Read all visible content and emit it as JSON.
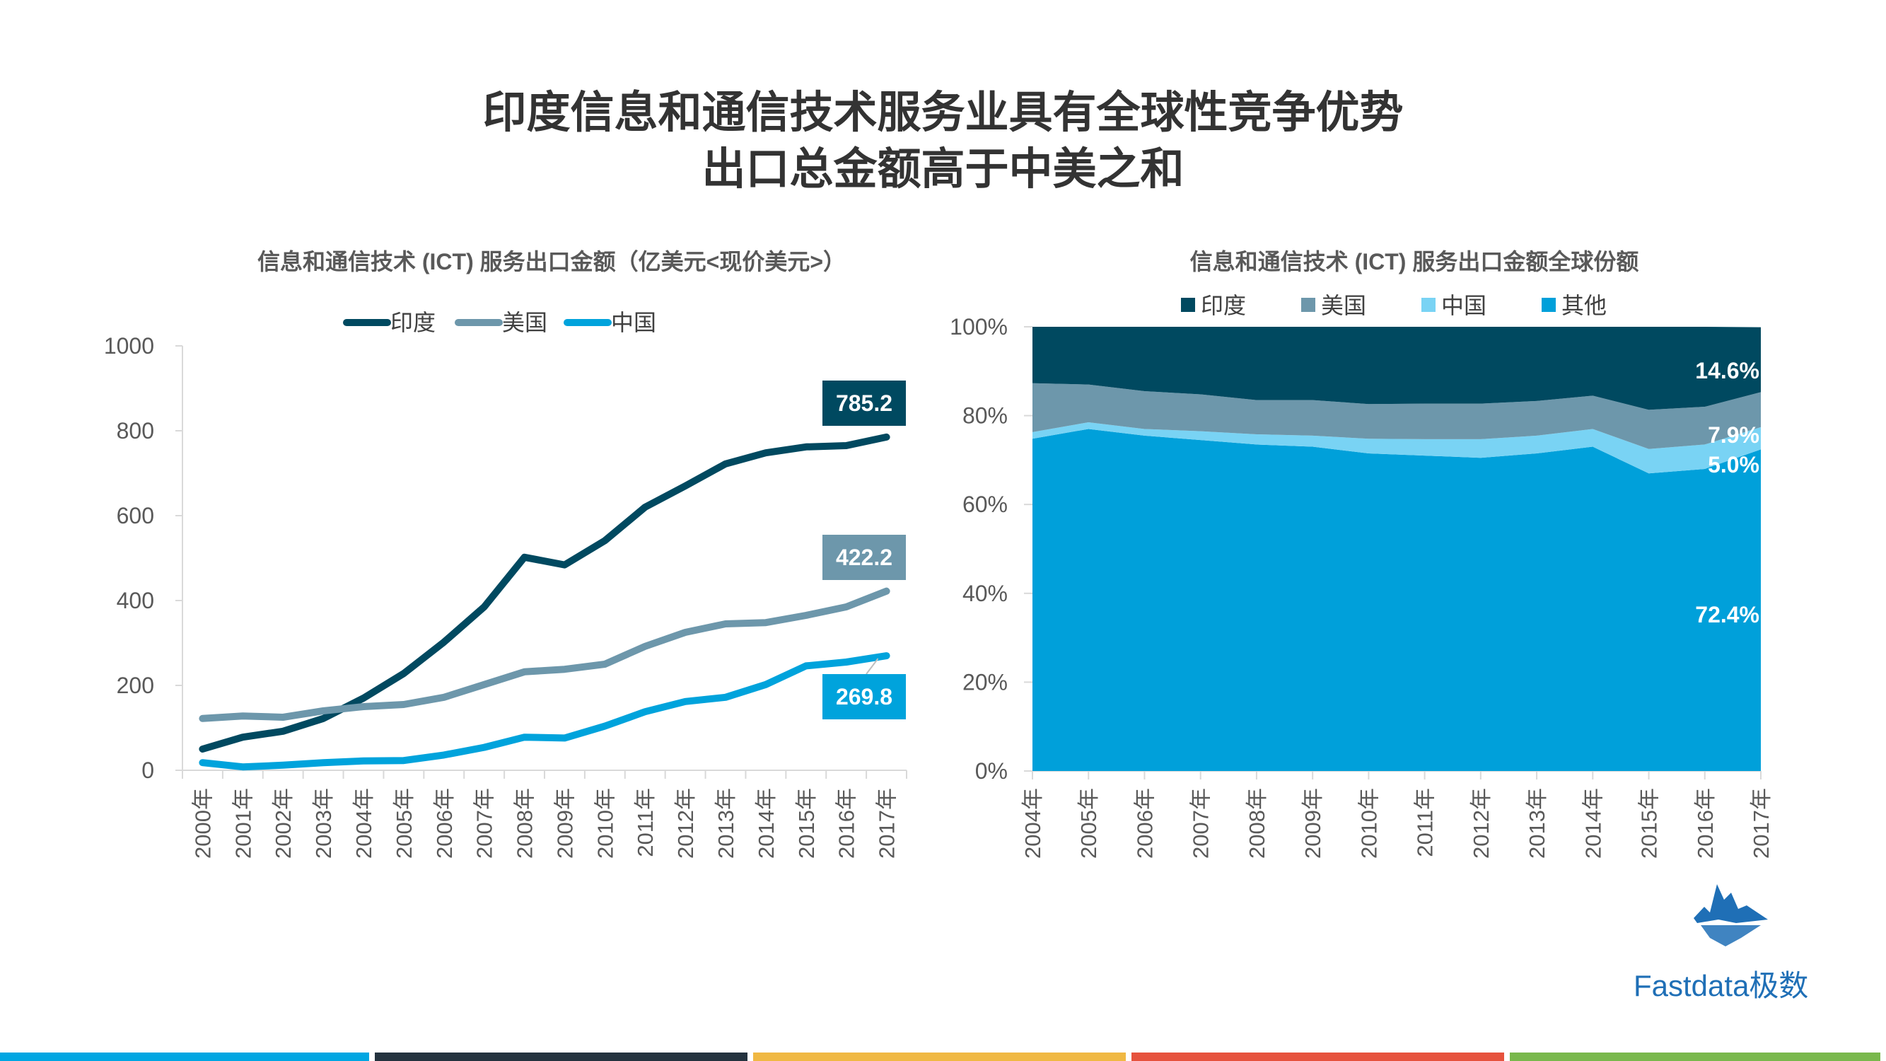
{
  "title": {
    "line1": "印度信息和通信技术服务业具有全球性竞争优势",
    "line2": "出口总金额高于中美之和"
  },
  "brand": {
    "name": "Fastdata极数"
  },
  "colors": {
    "india": "#004960",
    "usa": "#6d97ab",
    "china": "#00a3dc",
    "china_share": "#79d3f4",
    "other": "#00a0da",
    "footer": [
      "#00a6e2",
      "#24333f",
      "#f0b843",
      "#e6523d",
      "#79b84c"
    ]
  },
  "chart_data": [
    {
      "type": "line",
      "title": "信息和通信技术 (ICT) 服务出口金额（亿美元<现价美元>）",
      "categories": [
        "2000年",
        "2001年",
        "2002年",
        "2003年",
        "2004年",
        "2005年",
        "2006年",
        "2007年",
        "2008年",
        "2009年",
        "2010年",
        "2011年",
        "2012年",
        "2013年",
        "2014年",
        "2015年",
        "2016年",
        "2017年"
      ],
      "series": [
        {
          "name": "印度",
          "values": [
            50,
            78,
            92,
            122,
            170,
            228,
            302,
            385,
            502,
            484,
            541,
            620,
            670,
            722,
            748,
            762,
            765,
            785.2
          ]
        },
        {
          "name": "美国",
          "values": [
            122,
            128,
            125,
            140,
            150,
            155,
            172,
            202,
            232,
            238,
            250,
            292,
            325,
            345,
            348,
            365,
            385,
            422.2
          ]
        },
        {
          "name": "中国",
          "values": [
            18,
            8,
            12,
            18,
            22,
            23,
            36,
            54,
            78,
            76,
            104,
            138,
            162,
            172,
            202,
            246,
            255,
            269.8
          ]
        }
      ],
      "ylim": [
        0,
        1000
      ],
      "yticks": [
        "0",
        "200",
        "400",
        "600",
        "800",
        "1000"
      ],
      "end_labels": [
        "785.2",
        "422.2",
        "269.8"
      ],
      "legend": "top"
    },
    {
      "type": "area",
      "stacked": "percent",
      "title": "信息和通信技术 (ICT) 服务出口金额全球份额",
      "categories": [
        "2004年",
        "2005年",
        "2006年",
        "2007年",
        "2008年",
        "2009年",
        "2010年",
        "2011年",
        "2012年",
        "2013年",
        "2014年",
        "2015年",
        "2016年",
        "2017年"
      ],
      "series": [
        {
          "name": "其他",
          "values": [
            74.8,
            77.0,
            75.5,
            74.5,
            73.5,
            73.0,
            71.5,
            71.0,
            70.5,
            71.5,
            73.0,
            67.0,
            68.0,
            72.4
          ]
        },
        {
          "name": "中国",
          "values": [
            1.5,
            1.5,
            1.5,
            2.0,
            2.3,
            2.5,
            3.3,
            3.7,
            4.2,
            4.0,
            4.0,
            5.5,
            5.5,
            5.0
          ]
        },
        {
          "name": "美国",
          "values": [
            11.0,
            8.5,
            8.5,
            8.3,
            7.7,
            8.0,
            7.8,
            8.0,
            8.0,
            7.8,
            7.5,
            8.8,
            8.5,
            7.9
          ]
        },
        {
          "name": "印度",
          "values": [
            12.7,
            13.0,
            14.5,
            15.2,
            16.5,
            16.5,
            17.4,
            17.3,
            17.3,
            16.7,
            15.5,
            18.7,
            18.0,
            14.6
          ]
        }
      ],
      "legend_order": [
        "印度",
        "美国",
        "中国",
        "其他"
      ],
      "ylim": [
        0,
        100
      ],
      "yticks": [
        "0%",
        "20%",
        "40%",
        "60%",
        "80%",
        "100%"
      ],
      "end_labels": [
        "14.6%",
        "7.9%",
        "5.0%",
        "72.4%"
      ],
      "legend": "top"
    }
  ]
}
